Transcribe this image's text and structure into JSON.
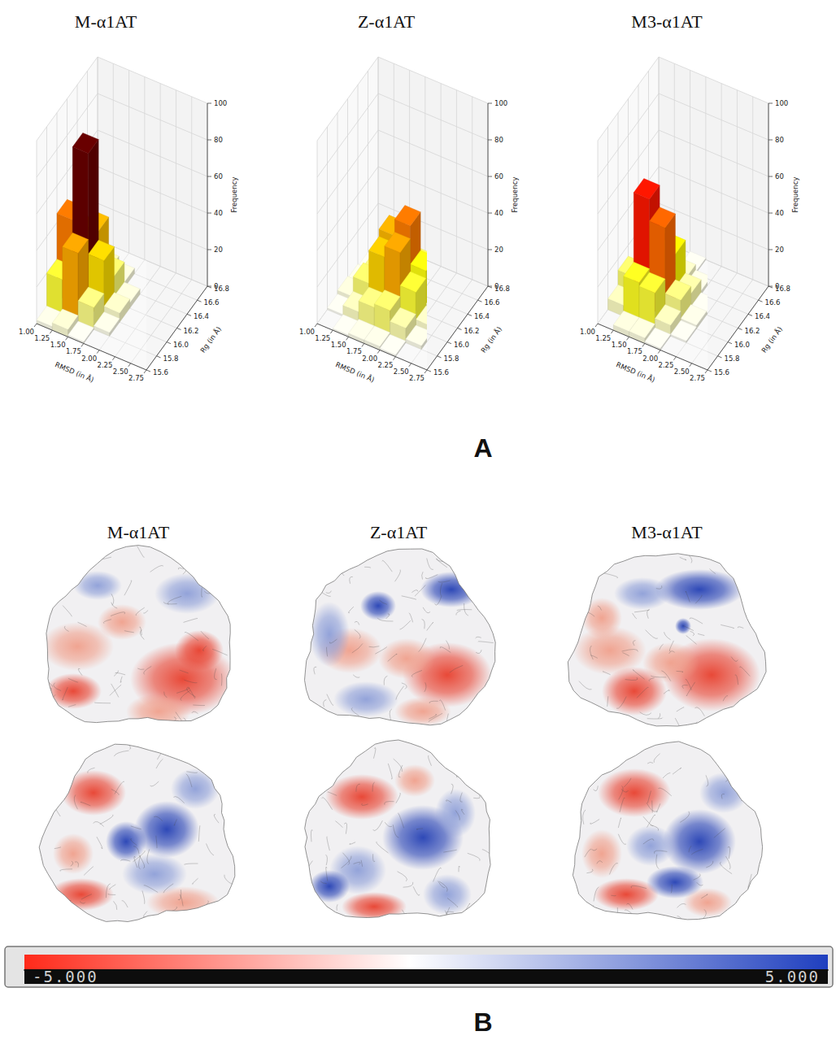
{
  "chart_data": [
    {
      "type": "histogram3d",
      "title": "M-α1AT",
      "x_label": "RMSD (in Å)",
      "y_label": "Rg (in Å)",
      "z_label": "Frequency",
      "x_bins": [
        1.0,
        1.25,
        1.5,
        1.75,
        2.0,
        2.25,
        2.5,
        2.75
      ],
      "y_bins": [
        15.6,
        15.8,
        16.0,
        16.2,
        16.4,
        16.6,
        16.8
      ],
      "values": [
        [
          2,
          4,
          1,
          0,
          0,
          0,
          0
        ],
        [
          20,
          38,
          12,
          2,
          0,
          0,
          0
        ],
        [
          45,
          85,
          30,
          5,
          0,
          0,
          0
        ],
        [
          18,
          35,
          14,
          3,
          0,
          0,
          0
        ],
        [
          2,
          6,
          3,
          0,
          0,
          0,
          0
        ],
        [
          0,
          0,
          0,
          0,
          0,
          0,
          0
        ]
      ],
      "xlim": [
        1.0,
        2.75
      ],
      "ylim": [
        15.6,
        16.8
      ],
      "zlim": [
        0,
        100
      ],
      "xticks": [
        {
          "value": 1.0,
          "label": "1.00"
        },
        1.25,
        {
          "value": 1.5,
          "label": "1.50"
        },
        1.75,
        {
          "value": 2.0,
          "label": "2.00"
        },
        2.25,
        {
          "value": 2.5,
          "label": "2.50"
        },
        2.75
      ],
      "yticks": [
        15.6,
        15.8,
        {
          "value": 16.0,
          "label": "16.0"
        },
        16.2,
        16.4,
        16.6,
        16.8
      ],
      "zticks": [
        0,
        20,
        40,
        60,
        80,
        100
      ],
      "grid": true
    },
    {
      "type": "histogram3d",
      "title": "Z-α1AT",
      "x_label": "RMSD (in Å)",
      "y_label": "Rg (in Å)",
      "z_label": "Frequency",
      "x_bins": [
        1.0,
        1.25,
        1.5,
        1.75,
        2.0,
        2.25,
        2.5,
        2.75
      ],
      "y_bins": [
        15.6,
        15.8,
        16.0,
        16.2,
        16.4,
        16.6,
        16.8
      ],
      "values": [
        [
          0,
          1,
          2,
          2,
          1,
          0,
          0
        ],
        [
          1,
          6,
          12,
          14,
          8,
          2,
          0
        ],
        [
          3,
          14,
          32,
          38,
          20,
          5,
          1
        ],
        [
          2,
          12,
          36,
          45,
          24,
          6,
          1
        ],
        [
          1,
          5,
          12,
          15,
          8,
          2,
          0
        ],
        [
          0,
          1,
          2,
          3,
          1,
          0,
          0
        ]
      ],
      "xlim": [
        1.0,
        2.75
      ],
      "ylim": [
        15.6,
        16.8
      ],
      "zlim": [
        0,
        100
      ],
      "xticks": [
        {
          "value": 1.0,
          "label": "1.00"
        },
        1.25,
        {
          "value": 1.5,
          "label": "1.50"
        },
        1.75,
        {
          "value": 2.0,
          "label": "2.00"
        },
        2.25,
        {
          "value": 2.5,
          "label": "2.50"
        },
        2.75
      ],
      "yticks": [
        15.6,
        15.8,
        {
          "value": 16.0,
          "label": "16.0"
        },
        16.2,
        16.4,
        16.6,
        16.8
      ],
      "zticks": [
        0,
        20,
        40,
        60,
        80,
        100
      ],
      "grid": true
    },
    {
      "type": "histogram3d",
      "title": "M3-α1AT",
      "x_label": "RMSD (in Å)",
      "y_label": "Rg (in Å)",
      "z_label": "Frequency",
      "x_bins": [
        1.0,
        1.25,
        1.5,
        1.75,
        2.0,
        2.25,
        2.5,
        2.75
      ],
      "y_bins": [
        15.6,
        15.8,
        16.0,
        16.2,
        16.4,
        16.6,
        16.8
      ],
      "values": [
        [
          0,
          3,
          3,
          1,
          0,
          0,
          0
        ],
        [
          6,
          22,
          20,
          6,
          1,
          0,
          0
        ],
        [
          14,
          60,
          48,
          12,
          2,
          0,
          0
        ],
        [
          8,
          30,
          26,
          8,
          1,
          0,
          0
        ],
        [
          1,
          6,
          5,
          2,
          0,
          0,
          0
        ],
        [
          0,
          0,
          1,
          0,
          0,
          0,
          0
        ]
      ],
      "xlim": [
        1.0,
        2.75
      ],
      "ylim": [
        15.6,
        16.8
      ],
      "zlim": [
        0,
        100
      ],
      "xticks": [
        {
          "value": 1.0,
          "label": "1.00"
        },
        1.25,
        {
          "value": 1.5,
          "label": "1.50"
        },
        1.75,
        {
          "value": 2.0,
          "label": "2.00"
        },
        2.25,
        {
          "value": 2.5,
          "label": "2.50"
        },
        2.75
      ],
      "yticks": [
        15.6,
        15.8,
        {
          "value": 16.0,
          "label": "16.0"
        },
        16.2,
        16.4,
        16.6,
        16.8
      ],
      "zticks": [
        0,
        20,
        40,
        60,
        80,
        100
      ],
      "grid": true
    }
  ],
  "panel_labels": {
    "a": "A",
    "b": "B"
  },
  "surface_panel": {
    "titles": [
      "M-α1AT",
      "Z-α1AT",
      "M3-α1AT"
    ],
    "colorbar": {
      "range": [
        -5,
        5
      ],
      "ticks": [
        {
          "value": -5,
          "label": "-5.000"
        },
        {
          "value": 5,
          "label": "5.000"
        }
      ]
    }
  }
}
